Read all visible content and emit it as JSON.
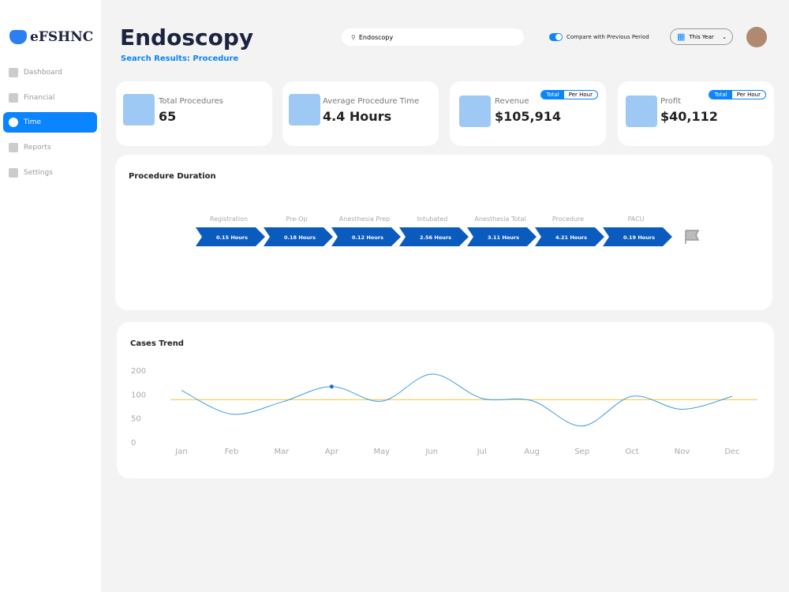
{
  "brand": "eFSHNC",
  "nav": [
    "Dashboard",
    "Financial",
    "Time",
    "Reports",
    "Settings"
  ],
  "header": {
    "title": "Endoscopy",
    "subtitle": "Search Results: Procedure",
    "search": "Endoscopy",
    "compare": "Compare with Previous Period",
    "period": "This Year"
  },
  "cards": [
    {
      "label": "Total Procedures",
      "value": "65"
    },
    {
      "label": "Average Procedure Time",
      "value": "4.4 Hours"
    },
    {
      "label": "Revenue",
      "value": "$105,914",
      "toggle": [
        "Total",
        "Per Hour"
      ]
    },
    {
      "label": "Profit",
      "value": "$40,112",
      "toggle": [
        "Total",
        "Per Hour"
      ]
    }
  ],
  "duration": {
    "title": "Procedure Duration",
    "steps": [
      {
        "label": "Registration",
        "value": "0.15 Hours"
      },
      {
        "label": "Pre-Op",
        "value": "0.18 Hours"
      },
      {
        "label": "Anesthesia Prep",
        "value": "0.12 Hours"
      },
      {
        "label": "Intubated",
        "value": "2.56 Hours"
      },
      {
        "label": "Anesthesia Total",
        "value": "3.11 Hours"
      },
      {
        "label": "Procedure",
        "value": "4.21 Hours"
      },
      {
        "label": "PACU",
        "value": "0.19 Hours"
      }
    ]
  },
  "chart_data": {
    "type": "line",
    "title": "Cases Trend",
    "categories": [
      "Jan",
      "Feb",
      "Mar",
      "Apr",
      "May",
      "Jun",
      "Jul",
      "Aug",
      "Sep",
      "Oct",
      "Nov",
      "Dec"
    ],
    "series": [
      {
        "color": "#3b9be8",
        "values": [
          119,
          60,
          85,
          135,
          87,
          187,
          93,
          88,
          35,
          97,
          70,
          97
        ]
      }
    ],
    "reference_line": {
      "value": 90,
      "color": "#f2d35a"
    },
    "highlight_index": 3,
    "ylim": [
      0,
      200
    ],
    "yticks": [
      0,
      50,
      100,
      200
    ]
  }
}
